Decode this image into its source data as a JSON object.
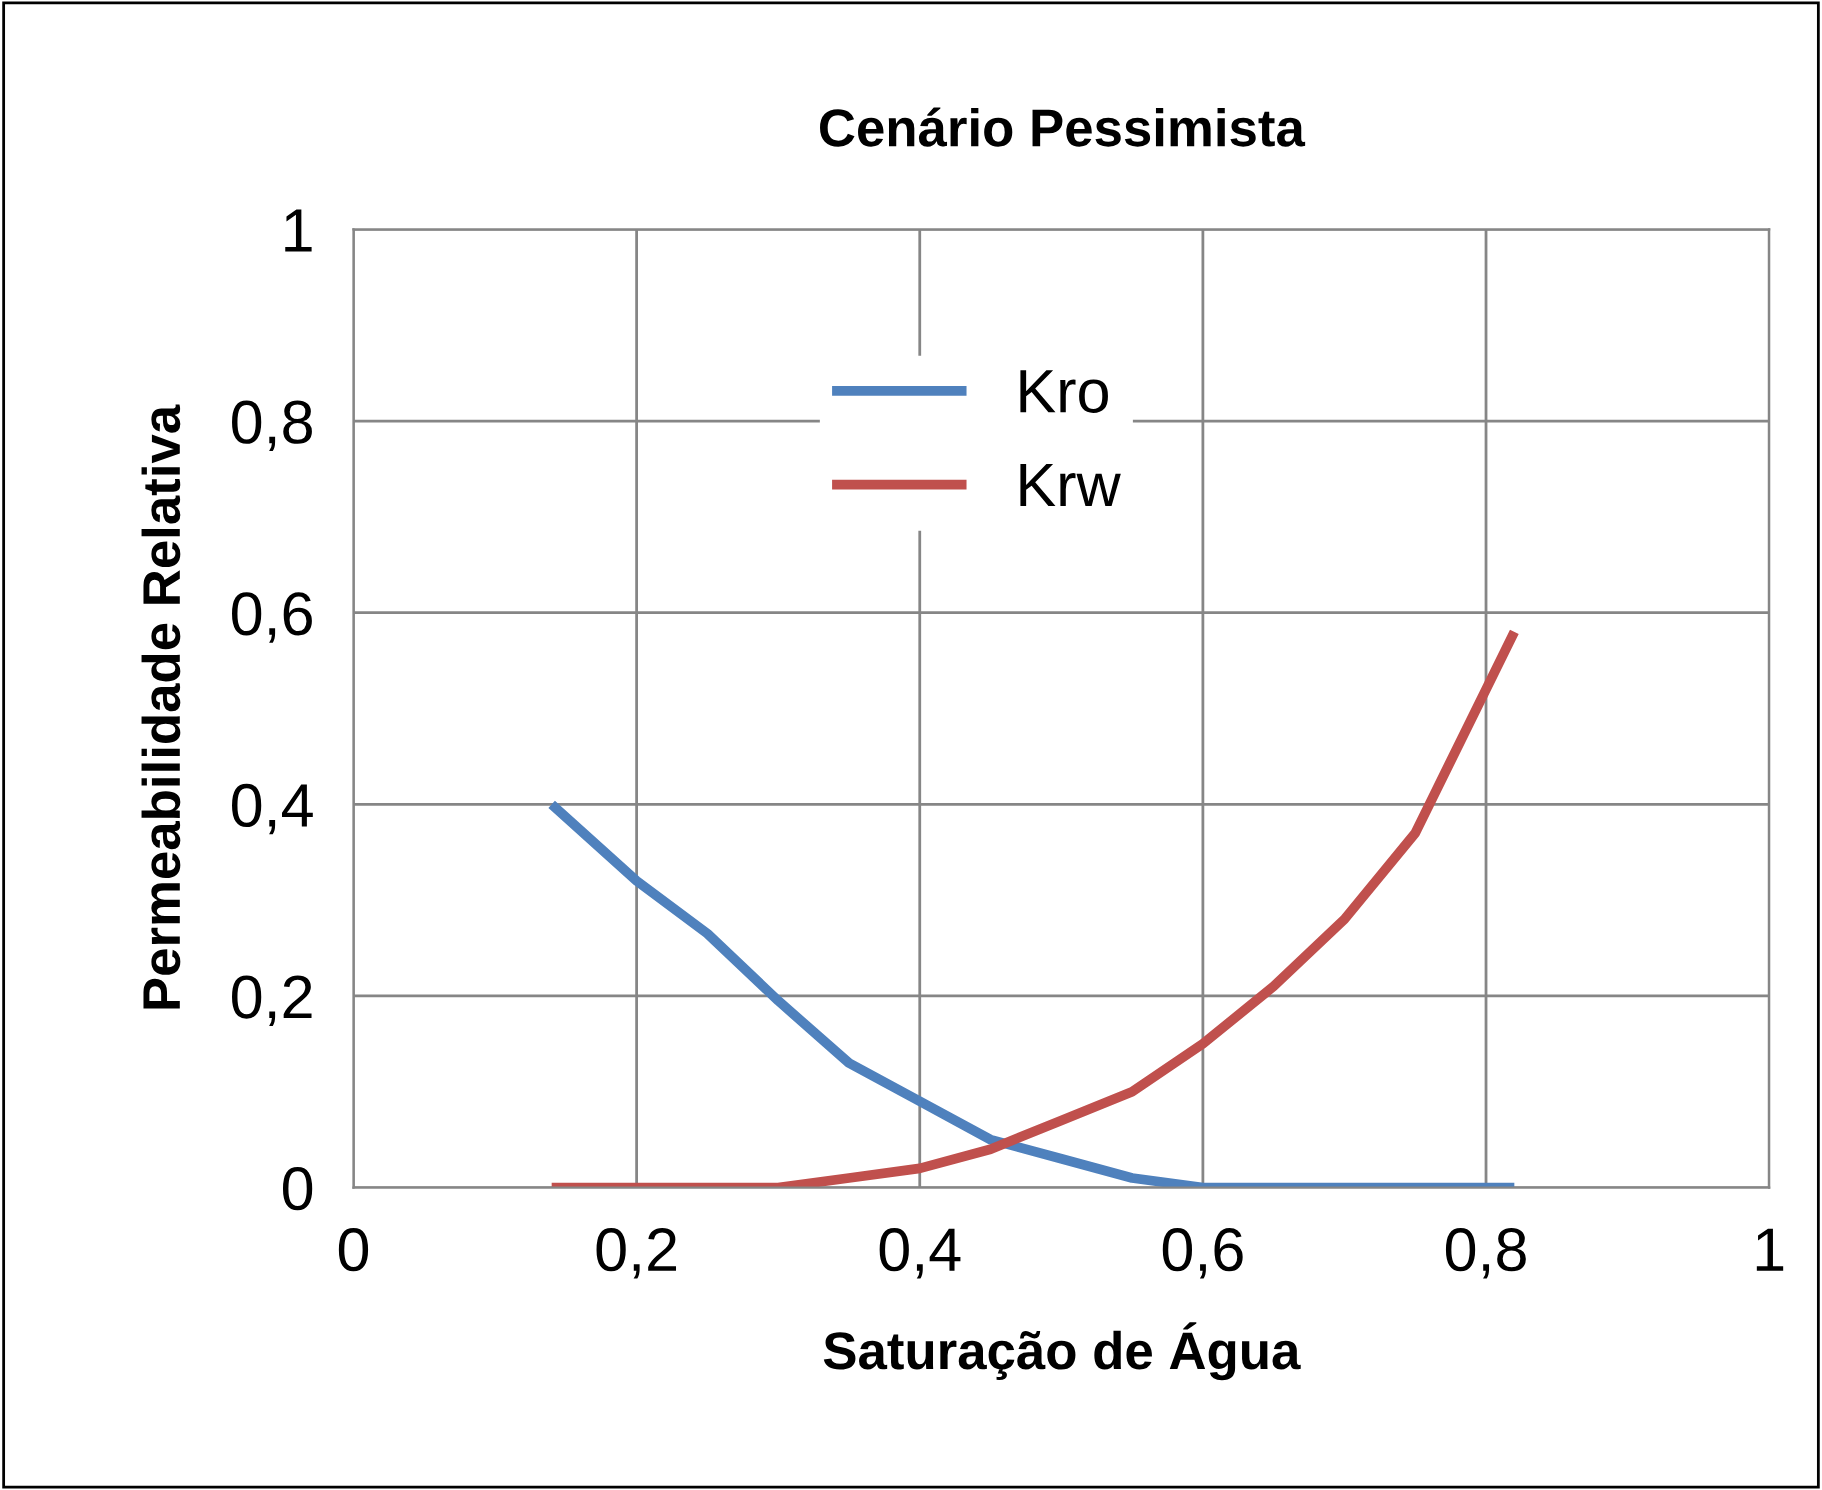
{
  "chart_data": {
    "type": "line",
    "title": "Cenário Pessimista",
    "xlabel": "Saturação de Água",
    "ylabel": "Permeabilidade Relativa",
    "series": [
      {
        "name": "Kro",
        "color": "#4f81bd",
        "x": [
          0.14,
          0.2,
          0.25,
          0.3,
          0.35,
          0.4,
          0.45,
          0.5,
          0.55,
          0.6,
          0.7,
          0.82
        ],
        "values": [
          0.4,
          0.32,
          0.265,
          0.195,
          0.13,
          0.09,
          0.05,
          0.03,
          0.01,
          0.0,
          0.0,
          0.0
        ]
      },
      {
        "name": "Krw",
        "color": "#c0504d",
        "x": [
          0.14,
          0.2,
          0.3,
          0.35,
          0.4,
          0.45,
          0.5,
          0.55,
          0.6,
          0.65,
          0.7,
          0.75,
          0.8,
          0.82
        ],
        "values": [
          0.0,
          0.0,
          0.0,
          0.01,
          0.02,
          0.04,
          0.07,
          0.1,
          0.15,
          0.21,
          0.28,
          0.37,
          0.52,
          0.58
        ]
      }
    ],
    "xlim": [
      0,
      1
    ],
    "ylim": [
      0,
      1
    ],
    "xticks": [
      0,
      {
        "value": 0.2,
        "label": "0,2"
      },
      {
        "value": 0.4,
        "label": "0,4"
      },
      {
        "value": 0.6,
        "label": "0,6"
      },
      {
        "value": 0.8,
        "label": "0,8"
      },
      1
    ],
    "yticks": [
      0,
      {
        "value": 0.2,
        "label": "0,2"
      },
      {
        "value": 0.4,
        "label": "0,4"
      },
      {
        "value": 0.6,
        "label": "0,6"
      },
      {
        "value": 0.8,
        "label": "0,8"
      },
      1
    ],
    "grid": true,
    "legend": "top",
    "marker": "none",
    "line_style": "solid"
  }
}
